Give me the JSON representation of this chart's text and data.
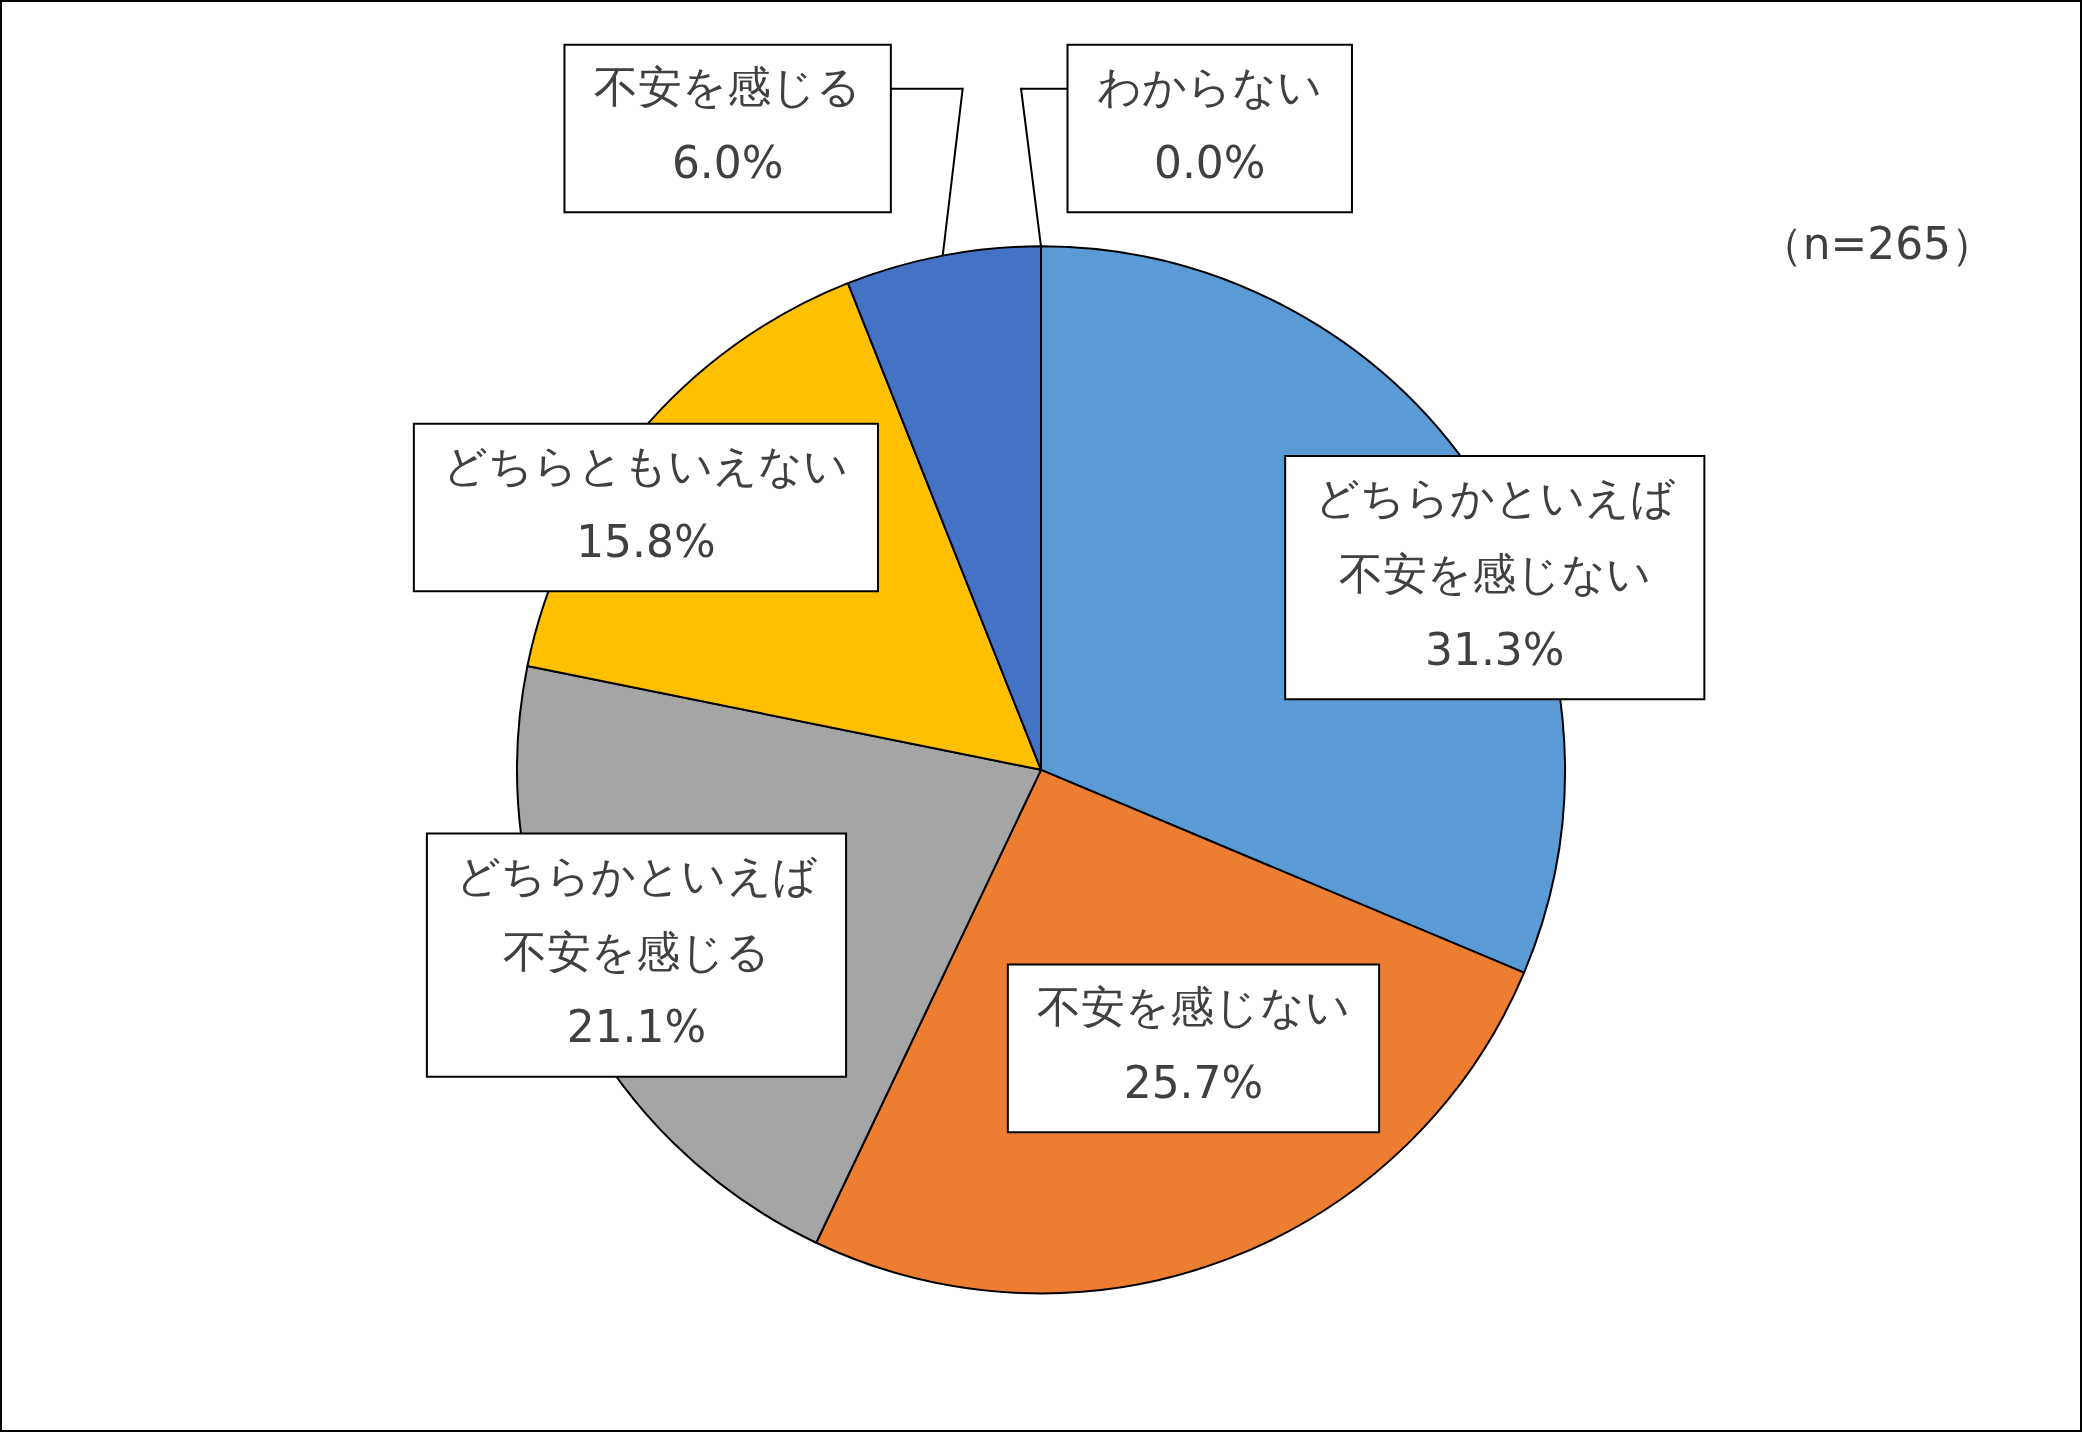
{
  "chart_data": {
    "type": "pie",
    "categories": [
      "どちらかといえば不安を感じない",
      "不安を感じない",
      "どちらかといえば不安を感じる",
      "どちらともいえない",
      "不安を感じる",
      "わからない"
    ],
    "values": [
      31.3,
      25.7,
      21.1,
      15.8,
      6.0,
      0.0
    ],
    "value_labels": [
      "31.3%",
      "25.7%",
      "21.1%",
      "15.8%",
      "6.0%",
      "0.0%"
    ],
    "colors": [
      "#5b9bd5",
      "#ed7d31",
      "#a5a5a5",
      "#ffc000",
      "#4472c4",
      "#70ad47"
    ],
    "legend": false,
    "annotations": [
      "（n=265）"
    ]
  }
}
